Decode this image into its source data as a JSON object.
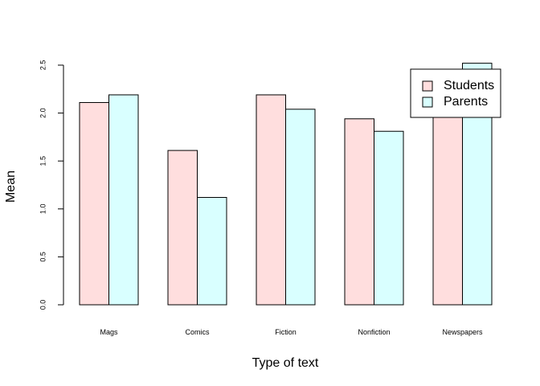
{
  "chart_data": {
    "type": "bar",
    "categories": [
      "Mags",
      "Comics",
      "Fiction",
      "Nonfiction",
      "Newspapers"
    ],
    "series": [
      {
        "name": "Students",
        "values": [
          2.11,
          1.61,
          2.19,
          1.94,
          2.21
        ],
        "color": "#FFDEDE"
      },
      {
        "name": "Parents",
        "values": [
          2.19,
          1.12,
          2.04,
          1.81,
          2.52
        ],
        "color": "#D9FFFF"
      }
    ],
    "xlabel": "Type of text",
    "ylabel": "Mean",
    "yticks": [
      "0.0",
      "0.5",
      "1.0",
      "1.5",
      "2.0",
      "2.5"
    ],
    "ylim": [
      0,
      2.5
    ],
    "grid": false,
    "legend_position": "top-right"
  }
}
